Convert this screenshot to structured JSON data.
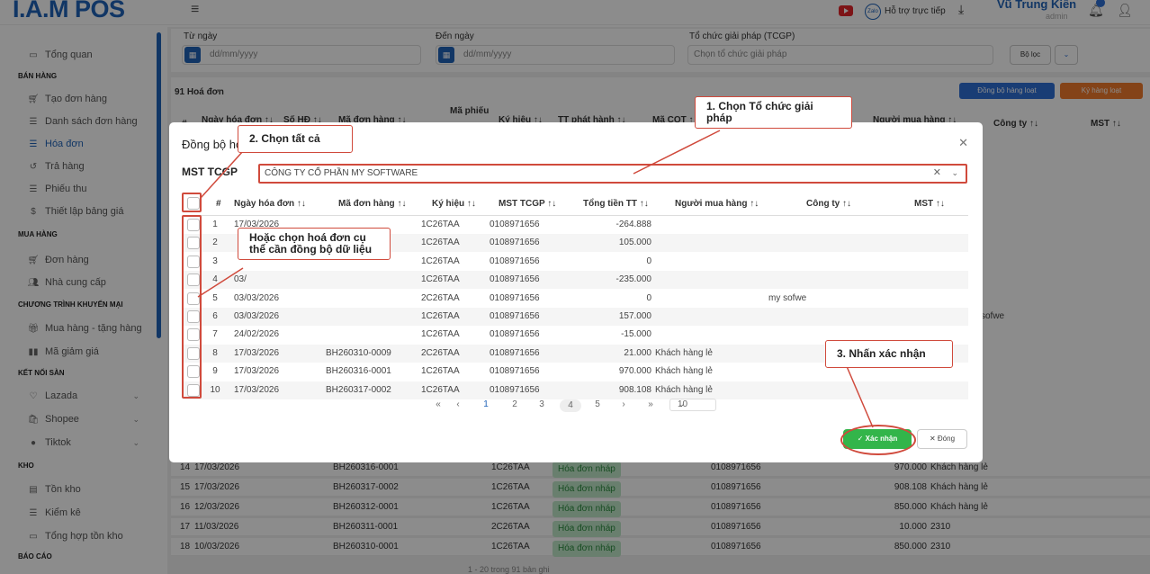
{
  "app": {
    "logo": "I.A.M POS"
  },
  "topbar": {
    "support": "Hỗ trợ trực tiếp",
    "zalo": "Zalo",
    "user_name": "Vũ Trung Kiên",
    "user_role": "admin"
  },
  "sidebar": {
    "overview": "Tổng quan",
    "sec_sales": "BÁN HÀNG",
    "create_order": "Tạo đơn hàng",
    "order_list": "Danh sách đơn hàng",
    "invoice": "Hóa đơn",
    "returns": "Trả hàng",
    "receipts": "Phiếu thu",
    "price_setup": "Thiết lập bảng giá",
    "sec_purchase": "MUA HÀNG",
    "po": "Đơn hàng",
    "supplier": "Nhà cung cấp",
    "sec_promo": "CHƯƠNG TRÌNH KHUYẾN MẠI",
    "buy_gift": "Mua hàng - tặng hàng",
    "discount_code": "Mã giảm giá",
    "sec_market": "KẾT NỐI SÀN",
    "lazada": "Lazada",
    "shopee": "Shopee",
    "tiktok": "Tiktok",
    "sec_stock": "KHO",
    "inventory": "Tồn kho",
    "stocktake": "Kiểm kê",
    "stock_summary": "Tổng hợp tồn kho",
    "sec_report": "BÁO CÁO"
  },
  "filters": {
    "from_label": "Từ ngày",
    "to_label": "Đến ngày",
    "org_label": "Tổ chức giải pháp (TCGP)",
    "date_placeholder": "dd/mm/yyyy",
    "org_placeholder": "Chọn tổ chức giải pháp",
    "filter_btn": "Bộ lọc"
  },
  "list": {
    "count": "91 Hoá đơn",
    "sync_bulk": "Đồng bộ hàng loạt",
    "sign_bulk": "Ký hàng loạt",
    "bg_headers": [
      "#",
      "Ngày hóa đơn ↑↓",
      "Số HĐ ↑↓",
      "Mã đơn hàng ↑↓",
      "Mã phiếu",
      "Ký hiệu ↑↓",
      "TT phát hành ↑↓",
      "Mã CQT ↑↓",
      "Người mua hàng ↑↓",
      "Công ty ↑↓",
      "MST ↑↓"
    ],
    "bg_sofwe": "sofwe",
    "bg_rows": [
      {
        "n": "14",
        "date": "17/03/2026",
        "code": "BH260316-0001",
        "sym": "1C26TAA",
        "status": "Hóa đơn nháp",
        "mst": "0108971656",
        "total": "970.000",
        "buyer": "Khách hàng lẻ"
      },
      {
        "n": "15",
        "date": "17/03/2026",
        "code": "BH260317-0002",
        "sym": "1C26TAA",
        "status": "Hóa đơn nháp",
        "mst": "0108971656",
        "total": "908.108",
        "buyer": "Khách hàng lẻ"
      },
      {
        "n": "16",
        "date": "12/03/2026",
        "code": "BH260312-0001",
        "sym": "1C26TAA",
        "status": "Hóa đơn nháp",
        "mst": "0108971656",
        "total": "850.000",
        "buyer": "Khách hàng lẻ"
      },
      {
        "n": "17",
        "date": "11/03/2026",
        "code": "BH260311-0001",
        "sym": "2C26TAA",
        "status": "Hóa đơn nháp",
        "mst": "0108971656",
        "total": "10.000",
        "buyer": "2310"
      },
      {
        "n": "18",
        "date": "10/03/2026",
        "code": "BH260310-0001",
        "sym": "1C26TAA",
        "status": "Hóa đơn nháp",
        "mst": "0108971656",
        "total": "850.000",
        "buyer": "2310"
      }
    ],
    "bottom_pager": "1 - 20 trong 91 bản ghi"
  },
  "modal": {
    "title": "Đồng bộ hóa đơn",
    "mst_label": "MST TCGP",
    "mst_value": "CÔNG TY CỔ PHẦN MY SOFTWARE",
    "headers": [
      "#",
      "Ngày hóa đơn ↑↓",
      "Mã đơn hàng ↑↓",
      "Ký hiệu ↑↓",
      "MST TCGP ↑↓",
      "Tổng tiền TT ↑↓",
      "Người mua hàng ↑↓",
      "Công ty ↑↓",
      "MST ↑↓"
    ],
    "rows": [
      {
        "n": "1",
        "date": "17/03/2026",
        "code": "",
        "sym": "1C26TAA",
        "mst": "0108971656",
        "total": "-264.888",
        "buyer": "",
        "company": ""
      },
      {
        "n": "2",
        "date": "",
        "code": "",
        "sym": "1C26TAA",
        "mst": "0108971656",
        "total": "105.000",
        "buyer": "",
        "company": ""
      },
      {
        "n": "3",
        "date": "",
        "code": "",
        "sym": "1C26TAA",
        "mst": "0108971656",
        "total": "0",
        "buyer": "",
        "company": ""
      },
      {
        "n": "4",
        "date": "03/",
        "code": "",
        "sym": "1C26TAA",
        "mst": "0108971656",
        "total": "-235.000",
        "buyer": "",
        "company": ""
      },
      {
        "n": "5",
        "date": "03/03/2026",
        "code": "",
        "sym": "2C26TAA",
        "mst": "0108971656",
        "total": "0",
        "buyer": "",
        "company": "my sofwe"
      },
      {
        "n": "6",
        "date": "03/03/2026",
        "code": "",
        "sym": "1C26TAA",
        "mst": "0108971656",
        "total": "157.000",
        "buyer": "",
        "company": ""
      },
      {
        "n": "7",
        "date": "24/02/2026",
        "code": "",
        "sym": "1C26TAA",
        "mst": "0108971656",
        "total": "-15.000",
        "buyer": "",
        "company": ""
      },
      {
        "n": "8",
        "date": "17/03/2026",
        "code": "BH260310-0009",
        "sym": "2C26TAA",
        "mst": "0108971656",
        "total": "21.000",
        "buyer": "Khách hàng lẻ",
        "company": ""
      },
      {
        "n": "9",
        "date": "17/03/2026",
        "code": "BH260316-0001",
        "sym": "1C26TAA",
        "mst": "0108971656",
        "total": "970.000",
        "buyer": "Khách hàng lẻ",
        "company": ""
      },
      {
        "n": "10",
        "date": "17/03/2026",
        "code": "BH260317-0002",
        "sym": "1C26TAA",
        "mst": "0108971656",
        "total": "908.108",
        "buyer": "Khách hàng lẻ",
        "company": ""
      }
    ],
    "pager": {
      "first": "«",
      "prev": "‹",
      "p1": "1",
      "p2": "2",
      "p3": "3",
      "p4": "4",
      "p5": "5",
      "next": "›",
      "last": "»",
      "size": "10"
    },
    "confirm": "Xác nhận",
    "close": "Đóng"
  },
  "annotations": {
    "step1": "1. Chọn Tổ chức giải pháp",
    "step2": "2. Chọn tất cả",
    "or_select": "Hoặc chọn hoá đơn cụ thể cần đồng bộ dữ liệu",
    "step3": "3. Nhấn xác nhận"
  },
  "colors": {
    "brand": "#1f63b8",
    "confirm": "#33b54a",
    "annotation": "#d04a3c"
  }
}
